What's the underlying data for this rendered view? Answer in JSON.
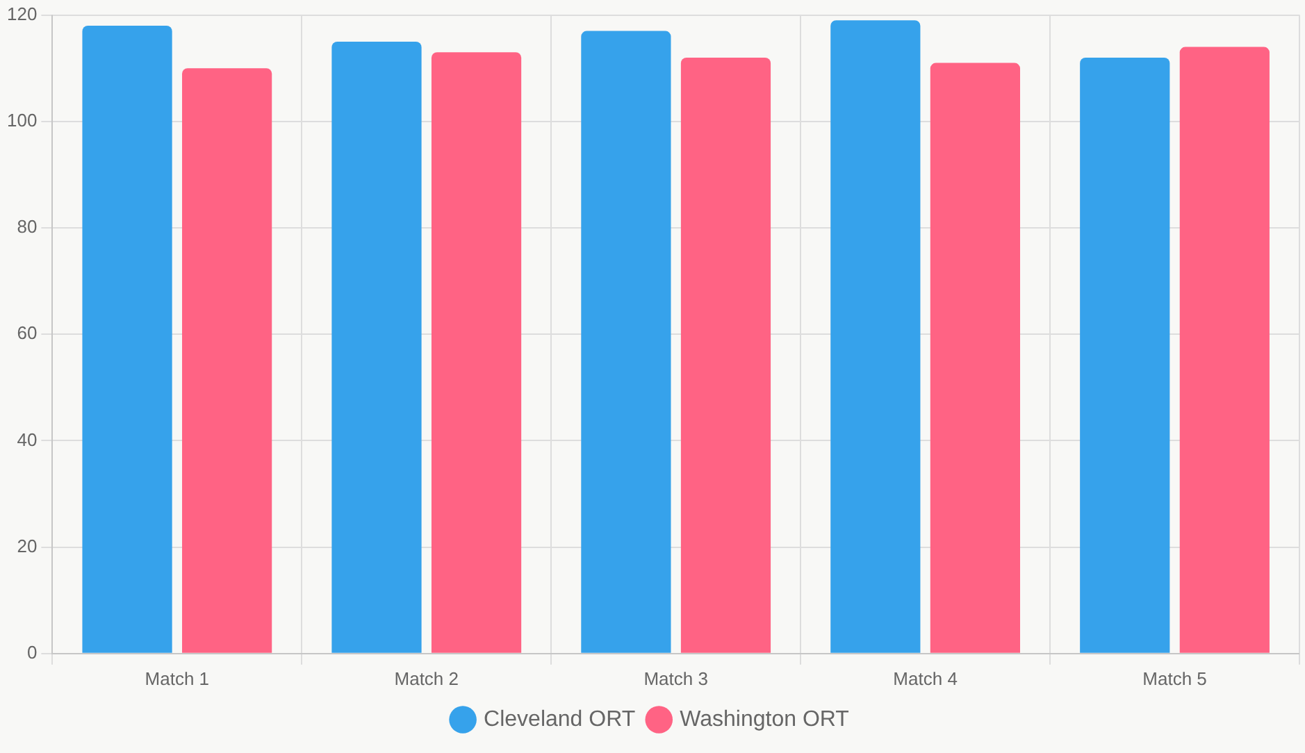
{
  "chart_data": {
    "type": "bar",
    "categories": [
      "Match 1",
      "Match 2",
      "Match 3",
      "Match 4",
      "Match 5"
    ],
    "series": [
      {
        "name": "Cleveland ORT",
        "color": "#36a2eb",
        "values": [
          118,
          115,
          117,
          119,
          112
        ]
      },
      {
        "name": "Washington ORT",
        "color": "#ff6384",
        "values": [
          110,
          113,
          112,
          111,
          114
        ]
      }
    ],
    "ylim": [
      0,
      120
    ],
    "yticks": [
      0,
      20,
      40,
      60,
      80,
      100,
      120
    ],
    "grid": true,
    "legend": "bottom"
  }
}
